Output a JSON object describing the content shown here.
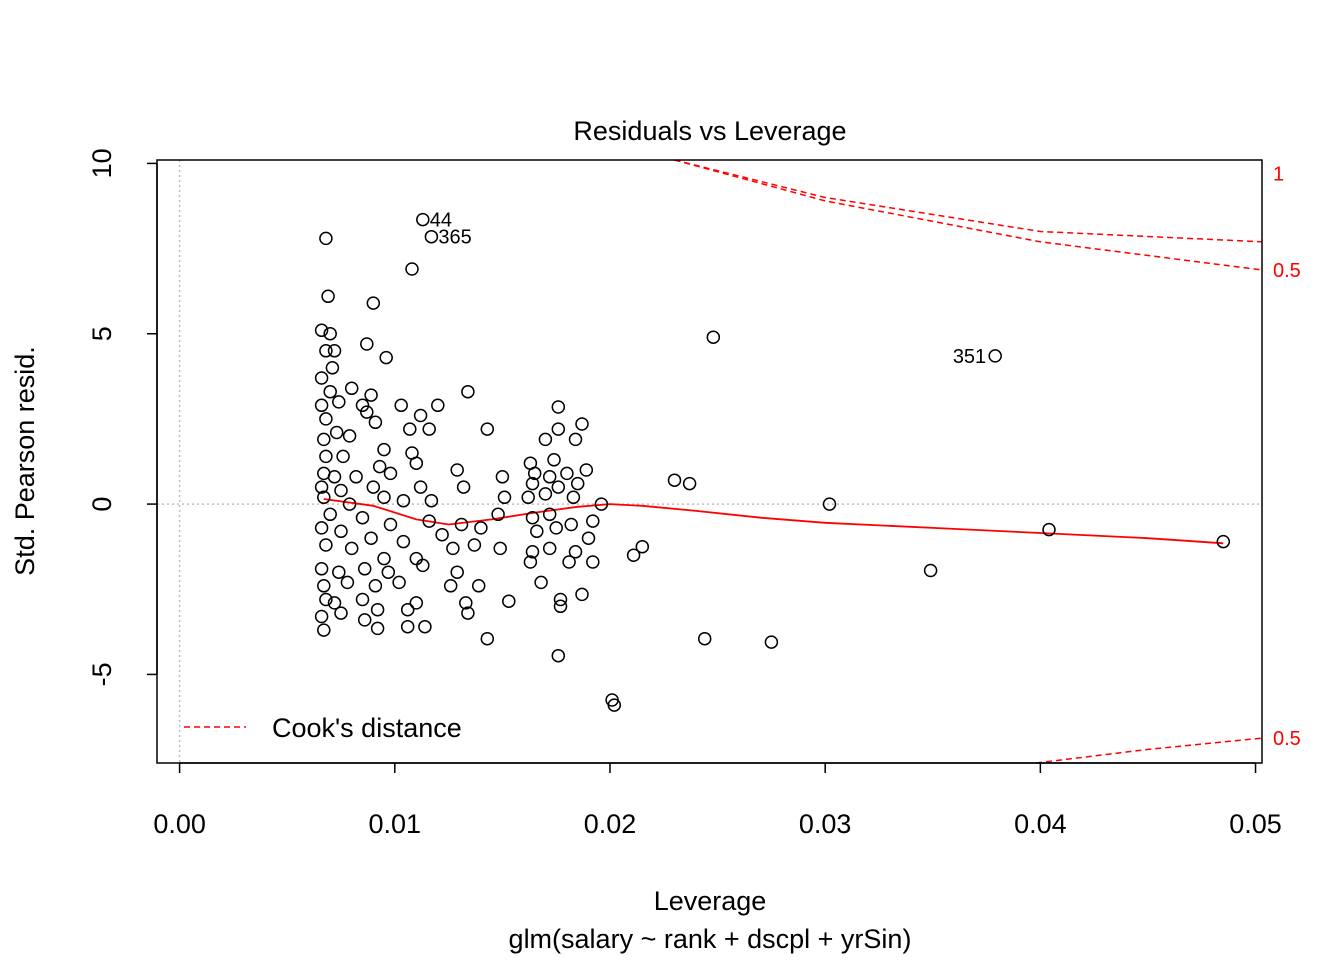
{
  "chart_data": {
    "type": "scatter",
    "title": "Residuals vs Leverage",
    "xlabel": "Leverage",
    "subtitle": "glm(salary ~ rank + dscpl + yrSin)",
    "ylabel": "Std. Pearson resid.",
    "xlim": [
      -0.00105,
      0.0503
    ],
    "ylim": [
      -7.6,
      10.1
    ],
    "x_ticks": [
      "0.00",
      "0.01",
      "0.02",
      "0.03",
      "0.04",
      "0.05"
    ],
    "y_ticks": [
      "-5",
      "0",
      "5",
      "10"
    ],
    "reference_lines": {
      "vertical_at_x": 0,
      "horizontal_at_y": 0,
      "style": "dotted gray"
    },
    "legend": {
      "position": "bottom-left",
      "label": "Cook's distance",
      "color": "#ff0000",
      "style": "dashed"
    },
    "cooks_contours": [
      {
        "label": "1",
        "right_y": 9.71,
        "points": [
          [
            0.023,
            10.1
          ],
          [
            0.03,
            9.0
          ],
          [
            0.04,
            8.0
          ],
          [
            0.0503,
            7.7
          ]
        ]
      },
      {
        "label": "0.5",
        "right_y": 6.87,
        "points": [
          [
            0.023,
            10.1
          ],
          [
            0.03,
            8.9
          ],
          [
            0.04,
            7.7
          ],
          [
            0.0503,
            6.87
          ]
        ]
      },
      {
        "label": "0.5",
        "right_y": -6.87,
        "points": [
          [
            0.0398,
            -7.6
          ],
          [
            0.045,
            -7.2
          ],
          [
            0.0503,
            -6.87
          ]
        ]
      }
    ],
    "smoother": {
      "color": "#ff0000",
      "points": [
        [
          0.0067,
          0.15
        ],
        [
          0.009,
          -0.05
        ],
        [
          0.011,
          -0.45
        ],
        [
          0.0125,
          -0.6
        ],
        [
          0.0145,
          -0.45
        ],
        [
          0.0165,
          -0.25
        ],
        [
          0.0185,
          -0.08
        ],
        [
          0.02,
          0.0
        ],
        [
          0.0215,
          -0.05
        ],
        [
          0.024,
          -0.2
        ],
        [
          0.027,
          -0.4
        ],
        [
          0.03,
          -0.55
        ],
        [
          0.035,
          -0.7
        ],
        [
          0.04,
          -0.85
        ],
        [
          0.045,
          -1.0
        ],
        [
          0.0485,
          -1.15
        ]
      ]
    },
    "labeled_points": [
      {
        "label": "44",
        "x": 0.0113,
        "y": 8.35,
        "side": "right"
      },
      {
        "label": "365",
        "x": 0.0117,
        "y": 7.85,
        "side": "right"
      },
      {
        "label": "351",
        "x": 0.0379,
        "y": 4.35,
        "side": "left"
      }
    ],
    "points": [
      [
        0.0068,
        7.8
      ],
      [
        0.0108,
        6.9
      ],
      [
        0.009,
        5.9
      ],
      [
        0.0069,
        6.1
      ],
      [
        0.0248,
        4.9
      ],
      [
        0.0066,
        5.1
      ],
      [
        0.007,
        5.0
      ],
      [
        0.0087,
        4.7
      ],
      [
        0.0072,
        4.5
      ],
      [
        0.0096,
        4.3
      ],
      [
        0.0068,
        4.5
      ],
      [
        0.0071,
        4.0
      ],
      [
        0.0066,
        3.7
      ],
      [
        0.008,
        3.4
      ],
      [
        0.007,
        3.3
      ],
      [
        0.0134,
        3.3
      ],
      [
        0.0089,
        3.2
      ],
      [
        0.0074,
        3.0
      ],
      [
        0.0066,
        2.9
      ],
      [
        0.0085,
        2.9
      ],
      [
        0.0103,
        2.9
      ],
      [
        0.012,
        2.9
      ],
      [
        0.0176,
        2.85
      ],
      [
        0.0087,
        2.7
      ],
      [
        0.0112,
        2.6
      ],
      [
        0.0068,
        2.5
      ],
      [
        0.0091,
        2.4
      ],
      [
        0.0107,
        2.2
      ],
      [
        0.0116,
        2.2
      ],
      [
        0.0143,
        2.2
      ],
      [
        0.0176,
        2.2
      ],
      [
        0.0187,
        2.35
      ],
      [
        0.0073,
        2.1
      ],
      [
        0.0079,
        2.0
      ],
      [
        0.0067,
        1.9
      ],
      [
        0.0095,
        1.6
      ],
      [
        0.0108,
        1.5
      ],
      [
        0.017,
        1.9
      ],
      [
        0.0184,
        1.9
      ],
      [
        0.0068,
        1.4
      ],
      [
        0.0076,
        1.4
      ],
      [
        0.0093,
        1.1
      ],
      [
        0.011,
        1.2
      ],
      [
        0.0163,
        1.2
      ],
      [
        0.0174,
        1.3
      ],
      [
        0.0189,
        1.0
      ],
      [
        0.0129,
        1.0
      ],
      [
        0.0067,
        0.9
      ],
      [
        0.0072,
        0.8
      ],
      [
        0.0082,
        0.8
      ],
      [
        0.0098,
        0.9
      ],
      [
        0.015,
        0.8
      ],
      [
        0.0165,
        0.9
      ],
      [
        0.0172,
        0.8
      ],
      [
        0.018,
        0.9
      ],
      [
        0.023,
        0.7
      ],
      [
        0.0237,
        0.6
      ],
      [
        0.0066,
        0.5
      ],
      [
        0.0075,
        0.4
      ],
      [
        0.009,
        0.5
      ],
      [
        0.0112,
        0.5
      ],
      [
        0.0132,
        0.5
      ],
      [
        0.0164,
        0.6
      ],
      [
        0.0176,
        0.5
      ],
      [
        0.0185,
        0.6
      ],
      [
        0.0067,
        0.2
      ],
      [
        0.0079,
        0.0
      ],
      [
        0.0095,
        0.2
      ],
      [
        0.0104,
        0.1
      ],
      [
        0.0117,
        0.1
      ],
      [
        0.0151,
        0.2
      ],
      [
        0.0162,
        0.2
      ],
      [
        0.017,
        0.3
      ],
      [
        0.0183,
        0.2
      ],
      [
        0.0196,
        0.0
      ],
      [
        0.0302,
        0.0
      ],
      [
        0.007,
        -0.3
      ],
      [
        0.0085,
        -0.4
      ],
      [
        0.0098,
        -0.6
      ],
      [
        0.0116,
        -0.5
      ],
      [
        0.0131,
        -0.6
      ],
      [
        0.0148,
        -0.3
      ],
      [
        0.0164,
        -0.4
      ],
      [
        0.0172,
        -0.3
      ],
      [
        0.0182,
        -0.6
      ],
      [
        0.0192,
        -0.5
      ],
      [
        0.0066,
        -0.7
      ],
      [
        0.0075,
        -0.8
      ],
      [
        0.0089,
        -1.0
      ],
      [
        0.0104,
        -1.1
      ],
      [
        0.0122,
        -0.9
      ],
      [
        0.014,
        -0.7
      ],
      [
        0.0166,
        -0.8
      ],
      [
        0.0175,
        -0.7
      ],
      [
        0.019,
        -1.0
      ],
      [
        0.0068,
        -1.2
      ],
      [
        0.008,
        -1.3
      ],
      [
        0.0095,
        -1.6
      ],
      [
        0.011,
        -1.6
      ],
      [
        0.0127,
        -1.3
      ],
      [
        0.0137,
        -1.2
      ],
      [
        0.0149,
        -1.3
      ],
      [
        0.0164,
        -1.4
      ],
      [
        0.0172,
        -1.3
      ],
      [
        0.0184,
        -1.4
      ],
      [
        0.0215,
        -1.25
      ],
      [
        0.0211,
        -1.5
      ],
      [
        0.0066,
        -1.9
      ],
      [
        0.0074,
        -2.0
      ],
      [
        0.0086,
        -1.9
      ],
      [
        0.0097,
        -2.0
      ],
      [
        0.0113,
        -1.8
      ],
      [
        0.0129,
        -2.0
      ],
      [
        0.0163,
        -1.7
      ],
      [
        0.0181,
        -1.7
      ],
      [
        0.0192,
        -1.7
      ],
      [
        0.0067,
        -2.4
      ],
      [
        0.0078,
        -2.3
      ],
      [
        0.0091,
        -2.4
      ],
      [
        0.0102,
        -2.3
      ],
      [
        0.0126,
        -2.4
      ],
      [
        0.0139,
        -2.4
      ],
      [
        0.0168,
        -2.3
      ],
      [
        0.0068,
        -2.8
      ],
      [
        0.0072,
        -2.9
      ],
      [
        0.0085,
        -2.8
      ],
      [
        0.011,
        -2.9
      ],
      [
        0.0133,
        -2.9
      ],
      [
        0.0153,
        -2.85
      ],
      [
        0.0177,
        -2.8
      ],
      [
        0.0187,
        -2.65
      ],
      [
        0.0066,
        -3.3
      ],
      [
        0.0075,
        -3.2
      ],
      [
        0.0086,
        -3.4
      ],
      [
        0.0092,
        -3.1
      ],
      [
        0.0106,
        -3.1
      ],
      [
        0.0134,
        -3.2
      ],
      [
        0.0177,
        -3.0
      ],
      [
        0.0067,
        -3.7
      ],
      [
        0.0092,
        -3.65
      ],
      [
        0.0106,
        -3.6
      ],
      [
        0.0114,
        -3.6
      ],
      [
        0.0143,
        -3.95
      ],
      [
        0.0244,
        -3.95
      ],
      [
        0.0275,
        -4.05
      ],
      [
        0.0176,
        -4.45
      ],
      [
        0.0201,
        -5.75
      ],
      [
        0.0202,
        -5.9
      ],
      [
        0.0349,
        -1.95
      ],
      [
        0.0404,
        -0.75
      ],
      [
        0.0485,
        -1.1
      ],
      [
        0.0113,
        8.35
      ],
      [
        0.0117,
        7.85
      ],
      [
        0.0379,
        4.35
      ]
    ]
  }
}
